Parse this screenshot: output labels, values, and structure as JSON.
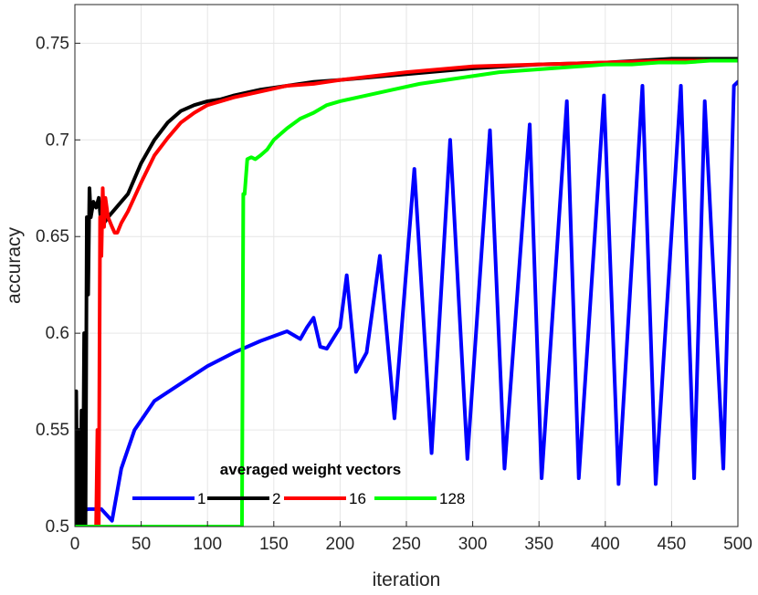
{
  "chart_data": {
    "type": "line",
    "title": "",
    "xlabel": "iteration",
    "ylabel": "accuracy",
    "xlim": [
      0,
      500
    ],
    "ylim": [
      0.5,
      0.77
    ],
    "xticks": [
      0,
      50,
      100,
      150,
      200,
      250,
      300,
      350,
      400,
      450,
      500
    ],
    "xtick_labels": [
      "0",
      "50",
      "100",
      "150",
      "200",
      "250",
      "300",
      "350",
      "400",
      "450",
      "500"
    ],
    "yticks": [
      0.5,
      0.55,
      0.6,
      0.65,
      0.7,
      0.75
    ],
    "ytick_labels": [
      "0.5",
      "0.55",
      "0.6",
      "0.65",
      "0.7",
      "0.75"
    ],
    "grid": true,
    "legend": {
      "title": "averaged weight vectors",
      "placement": "bottom-center",
      "orientation": "horizontal"
    },
    "series": [
      {
        "name": "1",
        "color": "#0000ff",
        "x": [
          0,
          10,
          20,
          28,
          35,
          45,
          60,
          80,
          100,
          120,
          140,
          160,
          170,
          175,
          180,
          185,
          190,
          200,
          205,
          212,
          220,
          230,
          241,
          256,
          269,
          283,
          296,
          313,
          324,
          343,
          352,
          371,
          380,
          399,
          410,
          428,
          438,
          457,
          467,
          475,
          489,
          497,
          500
        ],
        "y": [
          0.507,
          0.509,
          0.509,
          0.503,
          0.53,
          0.55,
          0.565,
          0.574,
          0.583,
          0.59,
          0.596,
          0.601,
          0.597,
          0.603,
          0.608,
          0.593,
          0.592,
          0.603,
          0.63,
          0.58,
          0.59,
          0.64,
          0.556,
          0.685,
          0.538,
          0.7,
          0.535,
          0.705,
          0.53,
          0.708,
          0.525,
          0.72,
          0.525,
          0.723,
          0.522,
          0.728,
          0.522,
          0.728,
          0.525,
          0.72,
          0.53,
          0.728,
          0.73
        ]
      },
      {
        "name": "2",
        "color": "#000000",
        "x": [
          0,
          1,
          2,
          3,
          4,
          5,
          6,
          7,
          8,
          9,
          10,
          11,
          12,
          14,
          16,
          18,
          20,
          25,
          30,
          40,
          50,
          60,
          70,
          80,
          90,
          100,
          110,
          120,
          140,
          160,
          180,
          200,
          250,
          300,
          350,
          400,
          450,
          500
        ],
        "y": [
          0.5,
          0.57,
          0.5,
          0.55,
          0.5,
          0.56,
          0.5,
          0.6,
          0.5,
          0.66,
          0.62,
          0.675,
          0.66,
          0.668,
          0.665,
          0.67,
          0.655,
          0.66,
          0.664,
          0.672,
          0.688,
          0.7,
          0.709,
          0.715,
          0.718,
          0.72,
          0.721,
          0.723,
          0.726,
          0.728,
          0.73,
          0.731,
          0.734,
          0.737,
          0.739,
          0.74,
          0.742,
          0.742
        ]
      },
      {
        "name": "16",
        "color": "#ff0000",
        "x": [
          0,
          16,
          17,
          18,
          19,
          20,
          21,
          22,
          23,
          25,
          28,
          30,
          32,
          35,
          40,
          50,
          60,
          70,
          80,
          90,
          100,
          110,
          120,
          140,
          160,
          180,
          200,
          250,
          300,
          350,
          400,
          450,
          500
        ],
        "y": [
          0.5,
          0.5,
          0.55,
          0.5,
          0.66,
          0.64,
          0.675,
          0.655,
          0.67,
          0.66,
          0.655,
          0.652,
          0.652,
          0.657,
          0.663,
          0.678,
          0.692,
          0.701,
          0.709,
          0.714,
          0.718,
          0.72,
          0.722,
          0.725,
          0.728,
          0.729,
          0.731,
          0.735,
          0.738,
          0.739,
          0.74,
          0.741,
          0.741
        ]
      },
      {
        "name": "128",
        "color": "#00ff00",
        "x": [
          0,
          126,
          127,
          128,
          130,
          133,
          136,
          140,
          145,
          150,
          160,
          170,
          180,
          190,
          200,
          220,
          240,
          260,
          280,
          300,
          320,
          340,
          360,
          380,
          400,
          420,
          440,
          460,
          480,
          500
        ],
        "y": [
          0.5,
          0.5,
          0.672,
          0.672,
          0.69,
          0.691,
          0.69,
          0.692,
          0.695,
          0.7,
          0.706,
          0.711,
          0.714,
          0.718,
          0.72,
          0.723,
          0.726,
          0.729,
          0.731,
          0.733,
          0.735,
          0.736,
          0.737,
          0.738,
          0.739,
          0.739,
          0.74,
          0.74,
          0.741,
          0.741
        ]
      }
    ]
  }
}
